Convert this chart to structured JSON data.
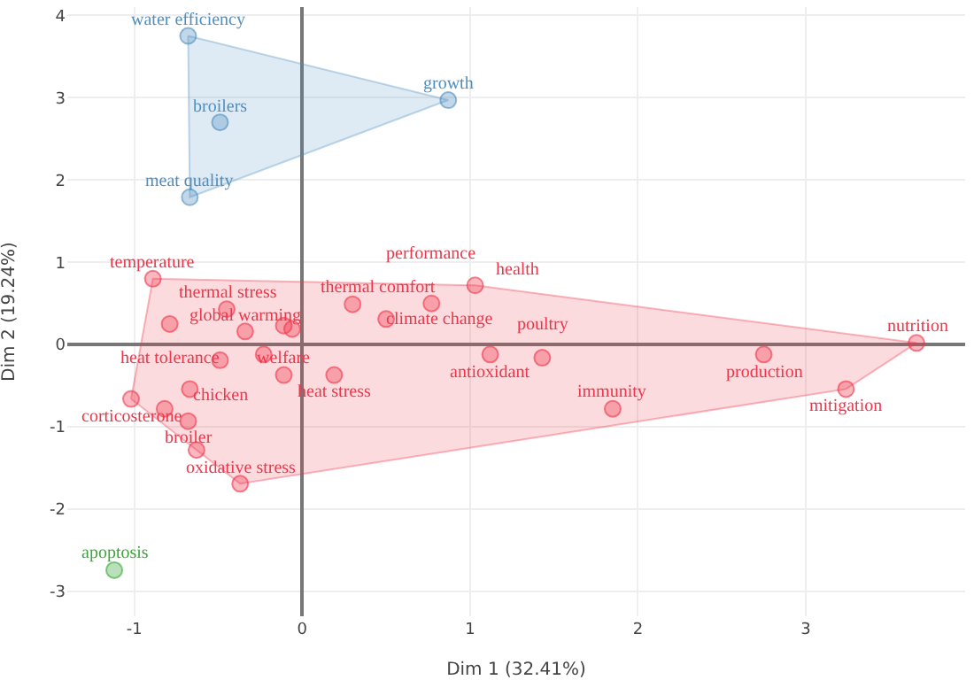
{
  "chart_data": {
    "type": "scatter",
    "xlabel": "Dim 1 (32.41%)",
    "ylabel": "Dim 2 (19.24%)",
    "xlim": [
      -1.4,
      3.95
    ],
    "ylim": [
      -3.3,
      4.1
    ],
    "xticks": [
      -1,
      0,
      1,
      2,
      3
    ],
    "yticks": [
      -3,
      -2,
      -1,
      0,
      1,
      2,
      3,
      4
    ],
    "grid": true,
    "marker": "circle",
    "series": [
      {
        "color": "#4f8fc0",
        "x": [
          -0.68,
          -0.49,
          -0.67,
          0.87
        ],
        "values": [
          3.75,
          2.7,
          1.79,
          2.97
        ]
      },
      {
        "color": "#f0354a",
        "x": [
          -0.89,
          -0.45,
          -0.79,
          -0.34,
          -0.11,
          -0.06,
          0.3,
          0.5,
          0.77,
          1.03,
          -0.49,
          -0.23,
          -0.11,
          0.19,
          -1.02,
          -0.82,
          -0.67,
          -0.68,
          -0.63,
          -0.37,
          1.12,
          1.43,
          1.85,
          2.75,
          3.24,
          3.66
        ],
        "values": [
          0.8,
          0.43,
          0.25,
          0.16,
          0.23,
          0.19,
          0.49,
          0.31,
          0.5,
          0.72,
          -0.19,
          -0.12,
          -0.37,
          -0.37,
          -0.66,
          -0.78,
          -0.54,
          -0.93,
          -1.28,
          -1.69,
          -0.12,
          -0.16,
          -0.78,
          -0.12,
          -0.54,
          0.02
        ]
      },
      {
        "color": "#3aa63a",
        "x": [
          -1.12
        ],
        "values": [
          -2.74
        ]
      }
    ],
    "annotations": [
      {
        "text": "water efficiency",
        "x": -0.68,
        "y": 3.75
      },
      {
        "text": "broilers",
        "x": -0.49,
        "y": 2.7
      },
      {
        "text": "meat quality",
        "x": -0.67,
        "y": 1.79
      },
      {
        "text": "growth",
        "x": 0.87,
        "y": 2.97
      },
      {
        "text": "temperature",
        "x": -0.89,
        "y": 0.8
      },
      {
        "text": "thermal stress",
        "x": -0.45,
        "y": 0.43
      },
      {
        "text": "heat tolerance",
        "x": -0.79,
        "y": 0.25
      },
      {
        "text": "global warming",
        "x": -0.34,
        "y": 0.16
      },
      {
        "text": "thermal comfort",
        "x": 0.3,
        "y": 0.49
      },
      {
        "text": "climate change",
        "x": 0.5,
        "y": 0.31
      },
      {
        "text": "performance",
        "x": 0.77,
        "y": 0.5
      },
      {
        "text": "health",
        "x": 1.03,
        "y": 0.72
      },
      {
        "text": "chicken",
        "x": -0.49,
        "y": -0.19
      },
      {
        "text": "welfare",
        "x": -0.11,
        "y": -0.37
      },
      {
        "text": "heat stress",
        "x": 0.19,
        "y": -0.37
      },
      {
        "text": "corticosterone",
        "x": -1.02,
        "y": -0.66
      },
      {
        "text": "broiler",
        "x": -0.68,
        "y": -0.93
      },
      {
        "text": "oxidative stress",
        "x": -0.37,
        "y": -1.69
      },
      {
        "text": "antioxidant",
        "x": 1.12,
        "y": -0.12
      },
      {
        "text": "poultry",
        "x": 1.43,
        "y": -0.16
      },
      {
        "text": "immunity",
        "x": 1.85,
        "y": -0.78
      },
      {
        "text": "production",
        "x": 2.75,
        "y": -0.12
      },
      {
        "text": "mitigation",
        "x": 3.24,
        "y": -0.54
      },
      {
        "text": "nutrition",
        "x": 3.66,
        "y": 0.02
      },
      {
        "text": "apoptosis",
        "x": -1.12,
        "y": -2.74
      }
    ]
  }
}
